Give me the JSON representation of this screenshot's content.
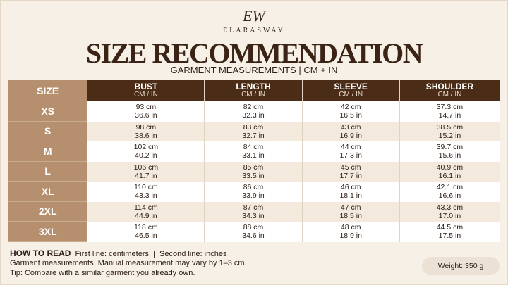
{
  "header": {
    "logo_mark": "EW",
    "brand": "ELARASWAY",
    "title": "SIZE RECOMMENDATION",
    "subtitle": "GARMENT MEASUREMENTS | CM + IN"
  },
  "table": {
    "size_header": "SIZE",
    "columns": [
      {
        "name": "BUST",
        "unit": "CM / IN"
      },
      {
        "name": "LENGTH",
        "unit": "CM / IN"
      },
      {
        "name": "SLEEVE",
        "unit": "CM / IN"
      },
      {
        "name": "SHOULDER",
        "unit": "CM / IN"
      }
    ],
    "rows": [
      {
        "size": "XS",
        "cells": [
          [
            "93 cm",
            "36.6 in"
          ],
          [
            "82 cm",
            "32.3 in"
          ],
          [
            "42 cm",
            "16.5 in"
          ],
          [
            "37.3 cm",
            "14.7 in"
          ]
        ]
      },
      {
        "size": "S",
        "cells": [
          [
            "98 cm",
            "38.6 in"
          ],
          [
            "83 cm",
            "32.7 in"
          ],
          [
            "43 cm",
            "16.9 in"
          ],
          [
            "38.5 cm",
            "15.2 in"
          ]
        ]
      },
      {
        "size": "M",
        "cells": [
          [
            "102 cm",
            "40.2 in"
          ],
          [
            "84 cm",
            "33.1 in"
          ],
          [
            "44 cm",
            "17.3 in"
          ],
          [
            "39.7 cm",
            "15.6 in"
          ]
        ]
      },
      {
        "size": "L",
        "cells": [
          [
            "106 cm",
            "41.7 in"
          ],
          [
            "85 cm",
            "33.5 in"
          ],
          [
            "45 cm",
            "17.7 in"
          ],
          [
            "40.9 cm",
            "16.1 in"
          ]
        ]
      },
      {
        "size": "XL",
        "cells": [
          [
            "110 cm",
            "43.3 in"
          ],
          [
            "86 cm",
            "33.9 in"
          ],
          [
            "46 cm",
            "18.1 in"
          ],
          [
            "42.1 cm",
            "16.6 in"
          ]
        ]
      },
      {
        "size": "2XL",
        "cells": [
          [
            "114 cm",
            "44.9 in"
          ],
          [
            "87 cm",
            "34.3 in"
          ],
          [
            "47 cm",
            "18.5 in"
          ],
          [
            "43.3 cm",
            "17.0 in"
          ]
        ]
      },
      {
        "size": "3XL",
        "cells": [
          [
            "118 cm",
            "46.5 in"
          ],
          [
            "88 cm",
            "34.6 in"
          ],
          [
            "48 cm",
            "18.9 in"
          ],
          [
            "44.5 cm",
            "17.5 in"
          ]
        ]
      }
    ]
  },
  "footer": {
    "how_to_read": "HOW TO READ",
    "how_to_read_text": "First line: centimeters  |  Second line: inches",
    "note": "Garment measurements. Manual measurement may vary by 1–3 cm.",
    "tip": "Tip: Compare with a similar garment you already own.",
    "weight": "Weight: 350 g"
  }
}
